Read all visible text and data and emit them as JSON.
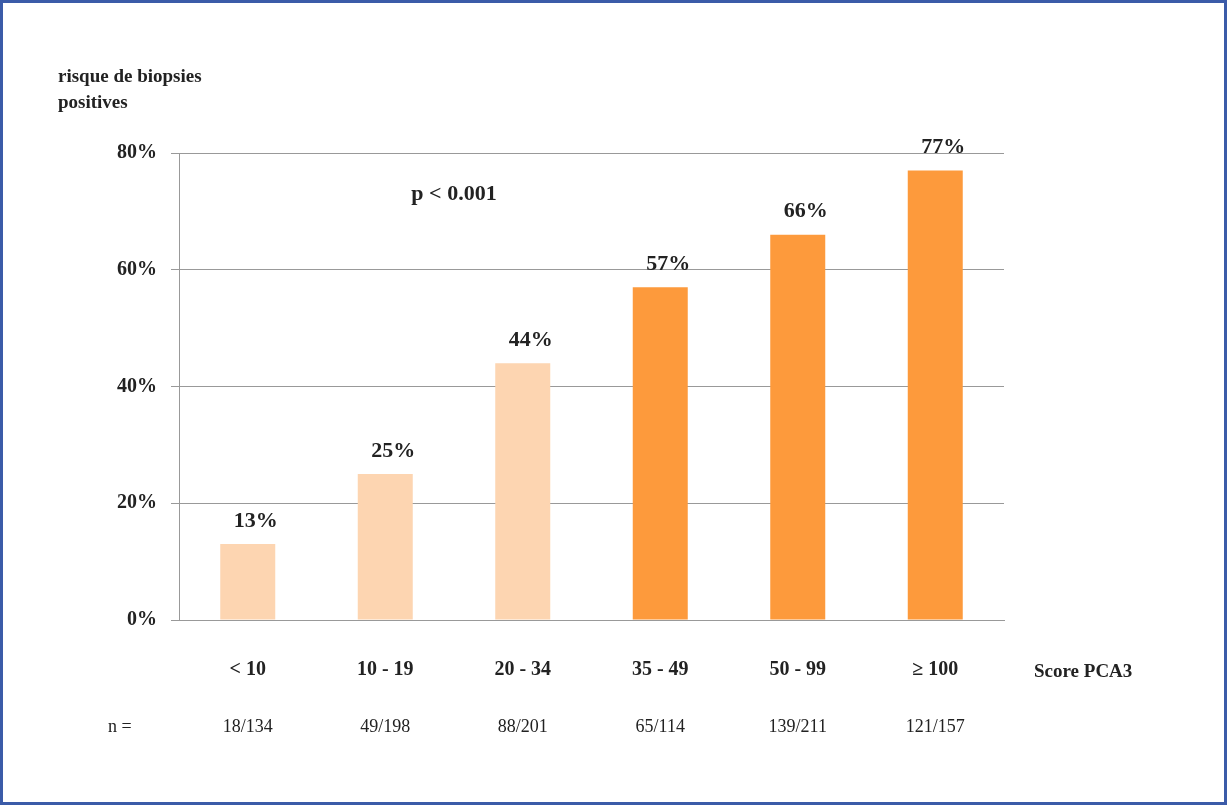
{
  "chart_data": {
    "type": "bar",
    "ylabel": "risque de biopsies positives",
    "xlabel": "Score PCA3",
    "categories": [
      "< 10",
      "10 - 19",
      "20 - 34",
      "35 - 49",
      "50 - 99",
      "≥ 100"
    ],
    "values": [
      13,
      25,
      44,
      57,
      66,
      77
    ],
    "colors": [
      "#fdd5b1",
      "#fdd5b1",
      "#fdd5b1",
      "#fd9a3c",
      "#fd9a3c",
      "#fd9a3c"
    ],
    "value_labels": [
      "13%",
      "25%",
      "44%",
      "57%",
      "66%",
      "77%"
    ],
    "ylim": [
      0,
      80
    ],
    "yticks": [
      {
        "value": 0,
        "label": "0%"
      },
      {
        "value": 20,
        "label": "20%"
      },
      {
        "value": 40,
        "label": "40%"
      },
      {
        "value": 60,
        "label": "60%"
      },
      {
        "value": 80,
        "label": "80%"
      }
    ],
    "grid": "y",
    "legend": false,
    "annotations": [
      "p < 0.001",
      "n =",
      "18/134",
      "49/198",
      "88/201",
      "65/114",
      "139/211",
      "121/157"
    ]
  }
}
